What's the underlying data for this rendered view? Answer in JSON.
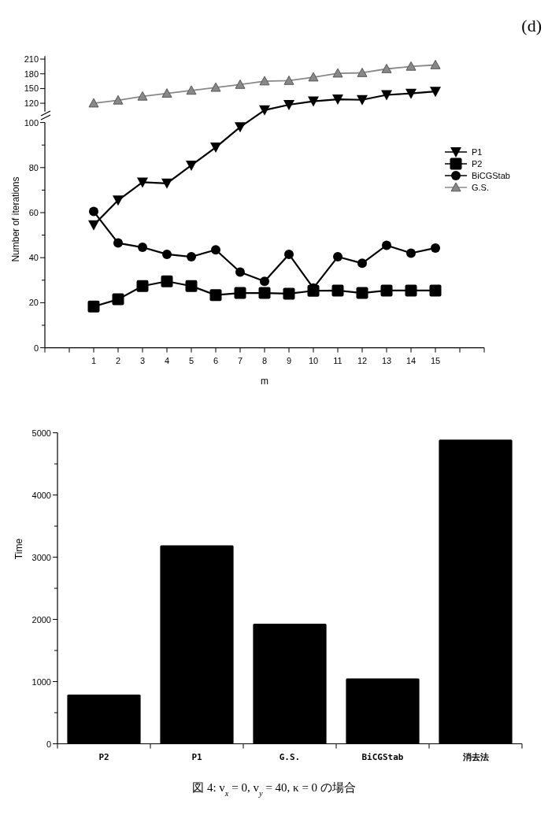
{
  "chart_data": [
    {
      "type": "line",
      "annotations": [
        "(d)"
      ],
      "x": [
        1,
        2,
        3,
        4,
        5,
        6,
        7,
        8,
        9,
        10,
        11,
        12,
        13,
        14,
        15
      ],
      "series": [
        {
          "name": "G.S.",
          "color": "#888888",
          "marker": "triangle",
          "values": [
            120,
            126,
            134,
            140,
            146,
            152,
            158,
            165,
            166,
            173,
            181,
            182,
            190,
            195,
            198
          ]
        },
        {
          "color": "#000000",
          "marker": "triangle-down",
          "values": [
            null,
            null,
            null,
            null,
            null,
            null,
            null,
            106,
            117,
            124,
            128,
            127,
            137,
            140,
            144
          ]
        }
      ],
      "ylim": [
        103,
        216
      ],
      "yticks": [
        120,
        150,
        180,
        210
      ],
      "tick_labels": "y",
      "line_style": "solid",
      "grid": false
    },
    {
      "type": "line",
      "xlabel": "m",
      "ylabel": "Number of iterations",
      "legend": "right",
      "x": [
        1,
        2,
        3,
        4,
        5,
        6,
        7,
        8,
        9,
        10,
        11,
        12,
        13,
        14,
        15
      ],
      "series": [
        {
          "name": "P1",
          "color": "#000000",
          "marker": "triangle-down",
          "values": [
            54.5,
            65.5,
            73.5,
            73,
            81,
            89,
            98,
            null,
            null,
            null,
            null,
            null,
            null,
            null,
            null
          ]
        },
        {
          "name": "P2",
          "color": "#000000",
          "marker": "square",
          "values": [
            18.3,
            21.5,
            27.4,
            29.5,
            27.4,
            23.4,
            24.3,
            24.3,
            24,
            25.3,
            25.4,
            24.3,
            25.4,
            25.4,
            25.4
          ]
        },
        {
          "name": "BiCGStab",
          "color": "#000000",
          "marker": "circle",
          "values": [
            60.5,
            46.5,
            44.6,
            41.5,
            40.4,
            43.5,
            33.6,
            29.5,
            41.5,
            26.5,
            40.4,
            37.5,
            45.5,
            42,
            44.3
          ]
        }
      ],
      "xlim": [
        -1,
        17
      ],
      "xticks": [
        {
          "value": -1,
          "label": null
        },
        {
          "value": 0,
          "label": null
        },
        1,
        2,
        3,
        4,
        5,
        6,
        7,
        8,
        9,
        10,
        11,
        12,
        13,
        14,
        15,
        {
          "value": 16,
          "label": null
        },
        {
          "value": 17,
          "label": null
        }
      ],
      "ylim": [
        0,
        100
      ],
      "yticks": [
        0,
        {
          "value": 10,
          "label": null
        },
        20,
        {
          "value": 30,
          "label": null
        },
        40,
        {
          "value": 50,
          "label": null
        },
        60,
        {
          "value": 70,
          "label": null
        },
        80,
        {
          "value": 90,
          "label": null
        },
        100
      ],
      "line_style": "solid",
      "grid": false
    },
    {
      "type": "bar",
      "ylabel": "Time",
      "categories": [
        "P2",
        "P1",
        "G.S.",
        "BiCGStab",
        "消去法"
      ],
      "values": [
        790,
        3190,
        1930,
        1050,
        4890
      ],
      "color": "#000000",
      "ylim": [
        0,
        5000
      ],
      "yticks": [
        0,
        {
          "value": 500,
          "label": null
        },
        1000,
        {
          "value": 1500,
          "label": null
        },
        2000,
        {
          "value": 2500,
          "label": null
        },
        3000,
        {
          "value": 3500,
          "label": null
        },
        4000,
        {
          "value": 4500,
          "label": null
        },
        5000
      ],
      "grid": false,
      "annotations": [
        "図 4: v$_{x}$ = 0, v$_{y}$ = 40, κ = 0 の場合"
      ]
    }
  ]
}
